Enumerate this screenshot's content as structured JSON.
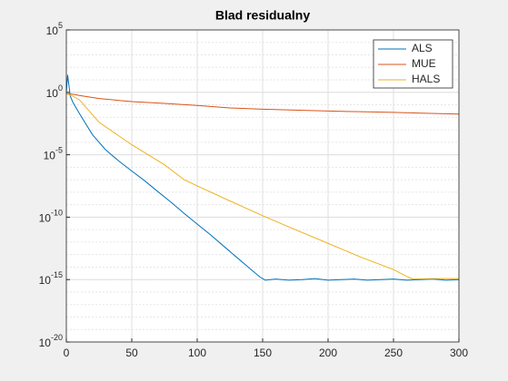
{
  "chart_data": {
    "type": "line",
    "title": "Blad residualny",
    "log_y": true,
    "grid": true,
    "minor_grid": true,
    "legend": "upper right",
    "xlim": [
      0,
      300
    ],
    "xticks": [
      0,
      50,
      100,
      150,
      200,
      250,
      300
    ],
    "ylim": [
      1e-20,
      100000
    ],
    "yticks": [
      {
        "value": 1e-20,
        "label": "10^-20"
      },
      {
        "value": 1e-15,
        "label": "10^-15"
      },
      {
        "value": 1e-10,
        "label": "10^-10"
      },
      {
        "value": 1e-05,
        "label": "10^-5"
      },
      {
        "value": 1,
        "label": "10^0"
      },
      {
        "value": 100000,
        "label": "10^5"
      }
    ],
    "series": [
      {
        "name": "ALS",
        "color": "#0072BD",
        "x": [
          0,
          1,
          3,
          5,
          10,
          20,
          30,
          40,
          50,
          60,
          70,
          80,
          90,
          100,
          110,
          120,
          130,
          140,
          148,
          152,
          160,
          170,
          180,
          190,
          200,
          210,
          220,
          230,
          240,
          250,
          260,
          270,
          280,
          290,
          300
        ],
        "values": [
          1,
          25,
          0.5,
          0.16,
          0.02,
          0.0004,
          2.5e-05,
          3.2e-06,
          5e-07,
          8e-08,
          1.1e-08,
          1.6e-09,
          2e-10,
          2.8e-11,
          4e-12,
          5e-13,
          6.3e-14,
          8e-15,
          1.6e-15,
          9e-16,
          1.1e-15,
          9e-16,
          1e-15,
          1.2e-15,
          9e-16,
          1e-15,
          1.1e-15,
          9e-16,
          1e-15,
          1.1e-15,
          9e-16,
          1e-15,
          1.1e-15,
          9e-16,
          1e-15
        ]
      },
      {
        "name": "MUE",
        "color": "#D95319",
        "x": [
          0,
          5,
          10,
          25,
          50,
          75,
          100,
          125,
          150,
          175,
          200,
          225,
          250,
          275,
          300
        ],
        "values": [
          0.8,
          0.7,
          0.56,
          0.32,
          0.18,
          0.13,
          0.09,
          0.056,
          0.045,
          0.038,
          0.032,
          0.028,
          0.025,
          0.021,
          0.018
        ]
      },
      {
        "name": "HALS",
        "color": "#EDB120",
        "x": [
          0,
          5,
          10,
          25,
          50,
          75,
          90,
          100,
          125,
          150,
          175,
          200,
          225,
          250,
          260,
          265,
          280,
          300
        ],
        "values": [
          0.8,
          0.5,
          0.25,
          0.004,
          6.3e-05,
          1.6e-06,
          1e-07,
          3.2e-08,
          2e-09,
          1.3e-10,
          1e-11,
          8e-13,
          6.3e-14,
          6.3e-15,
          1.8e-15,
          1.1e-15,
          1.2e-15,
          1.2e-15
        ]
      }
    ]
  }
}
